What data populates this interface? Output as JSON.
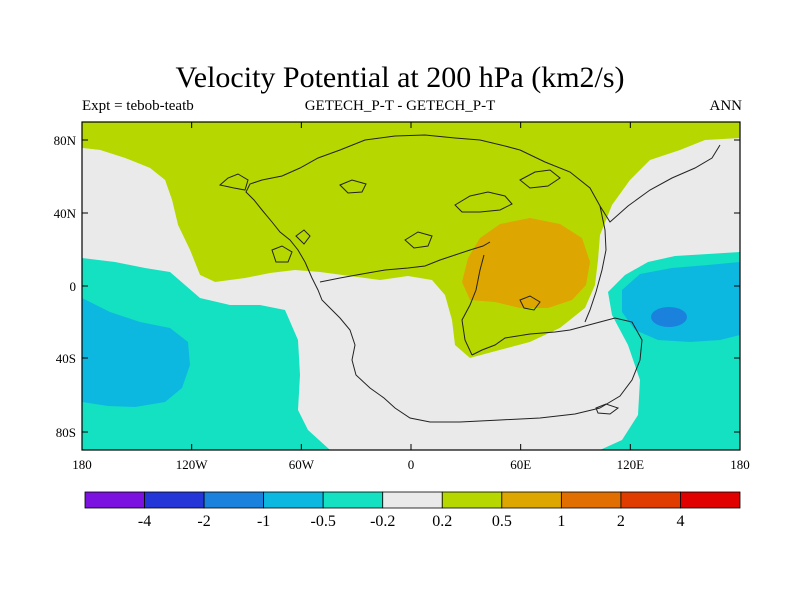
{
  "title": "Velocity Potential at 200 hPa (km2/s)",
  "subtitle_left": "Expt = tebob-teatb",
  "subtitle_center": "GETECH_P-T - GETECH_P-T",
  "subtitle_right": "ANN",
  "x_ticks": [
    "180",
    "120W",
    "60W",
    "0",
    "60E",
    "120E",
    "180"
  ],
  "y_ticks": [
    "80N",
    "40N",
    "0",
    "40S",
    "80S"
  ],
  "colorbar": {
    "colors": [
      "#7b12e0",
      "#2436d8",
      "#1a82dc",
      "#0db8e0",
      "#14e0c2",
      "#eaeaea",
      "#b6d800",
      "#dea600",
      "#e06e00",
      "#e03c00",
      "#e00000"
    ],
    "labels": [
      "-4",
      "-2",
      "-1",
      "-0.5",
      "-0.2",
      "0.2",
      "0.5",
      "1",
      "2",
      "4"
    ]
  },
  "palette": {
    "neutral": "#eaeaea",
    "pos_05": "#b6d800",
    "pos_1": "#dea600",
    "pos_2": "#e06e00",
    "neg_02": "#14e0c2",
    "neg_05": "#0db8e0",
    "neg_1": "#1a82dc"
  }
}
